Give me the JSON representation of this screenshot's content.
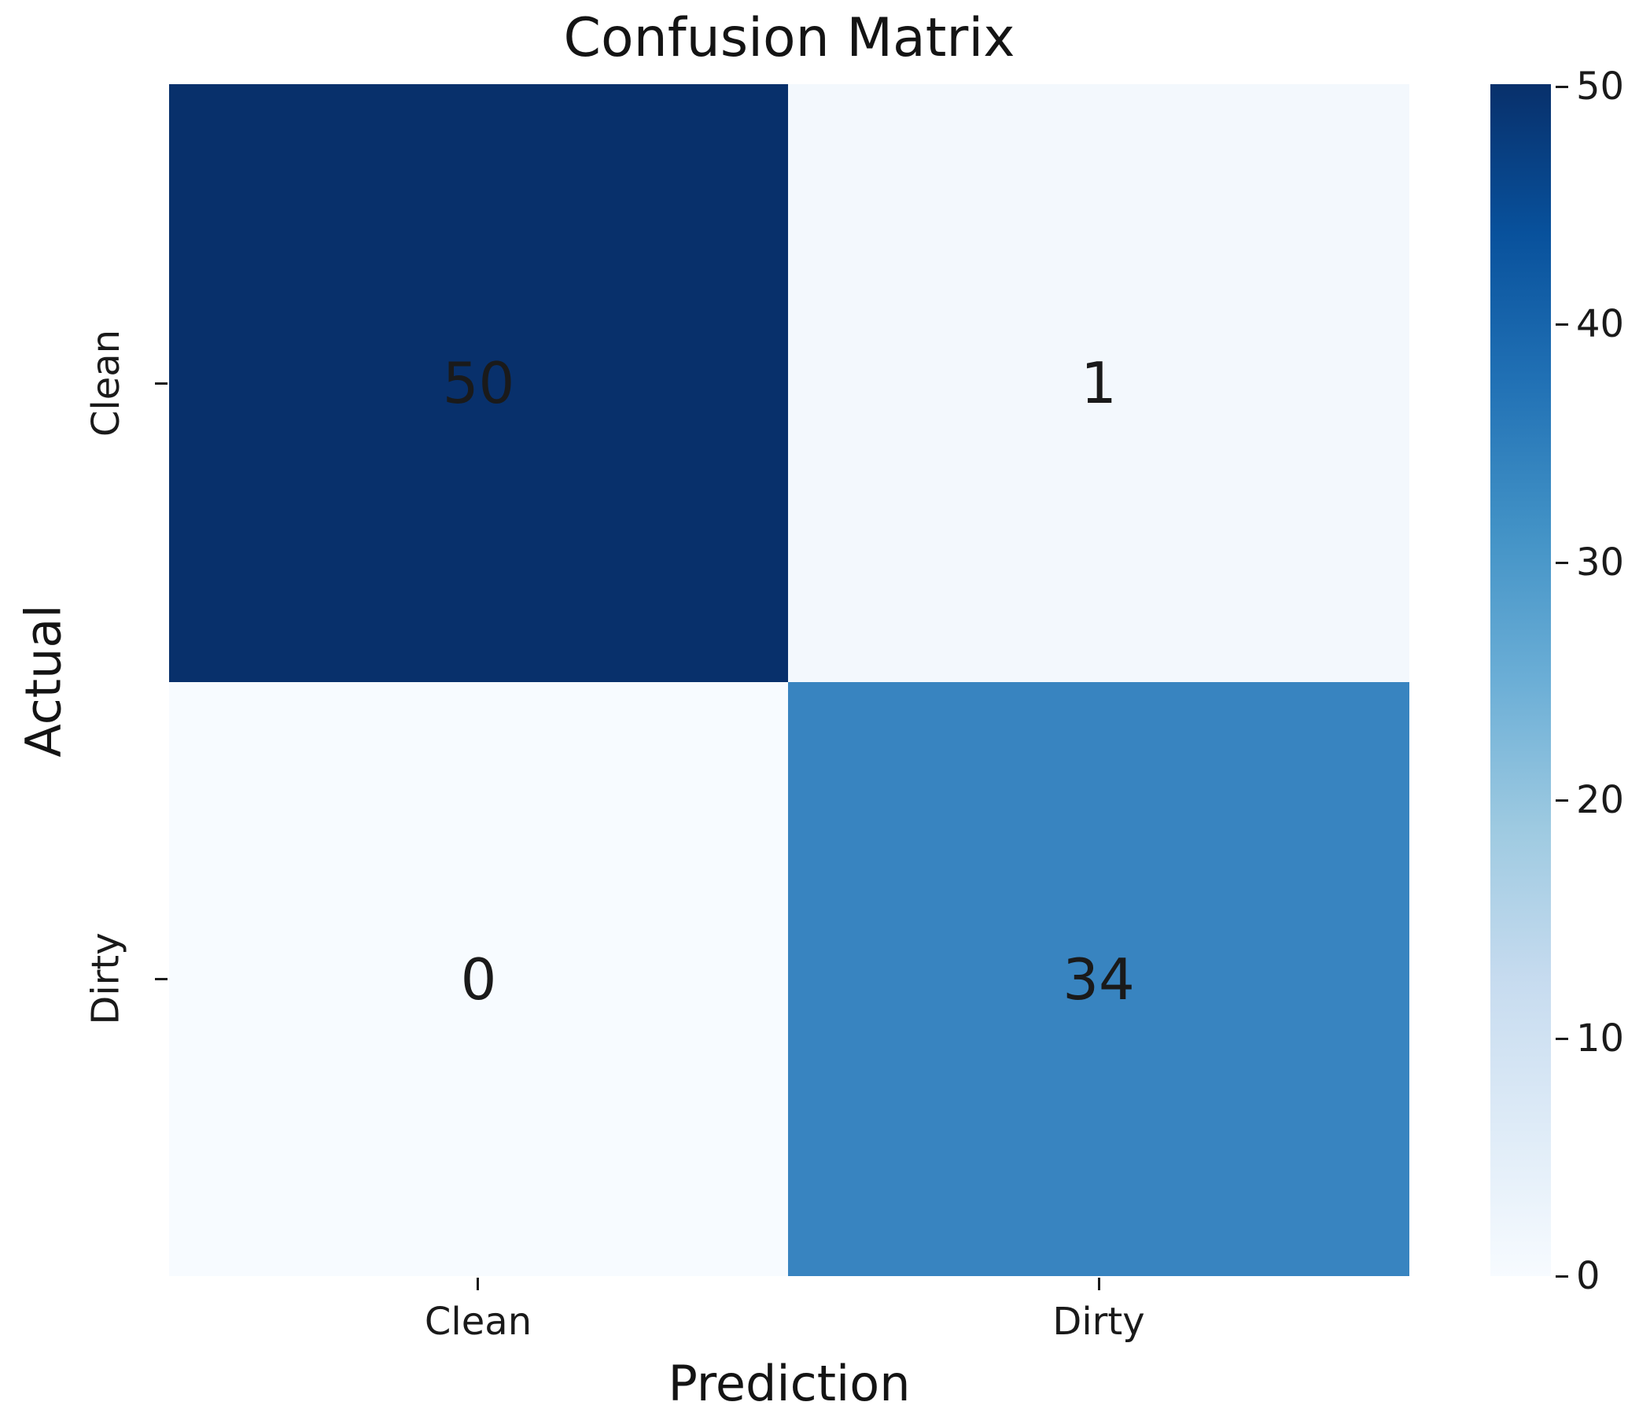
{
  "chart_data": {
    "type": "heatmap",
    "title": "Confusion Matrix",
    "xlabel": "Prediction",
    "ylabel": "Actual",
    "x_categories": [
      "Clean",
      "Dirty"
    ],
    "y_categories": [
      "Clean",
      "Dirty"
    ],
    "matrix": [
      [
        50,
        1
      ],
      [
        0,
        34
      ]
    ],
    "vmin": 0,
    "vmax": 50,
    "colormap": "Blues",
    "annotation_color": "#1a1a1a",
    "cell_colors": [
      [
        "#08306b",
        "#f3f8fd"
      ],
      [
        "#f7fbff",
        "#3884c0"
      ]
    ],
    "colorbar": {
      "position": "right",
      "ticks": [
        "50",
        "40",
        "30",
        "20",
        "10",
        "0"
      ],
      "gradient_stops": [
        "#f7fbff",
        "#deebf7",
        "#c6dbef",
        "#9ecae1",
        "#6baed6",
        "#4292c6",
        "#2171b5",
        "#08519c",
        "#08306b"
      ]
    },
    "grid": false,
    "legend": false
  }
}
